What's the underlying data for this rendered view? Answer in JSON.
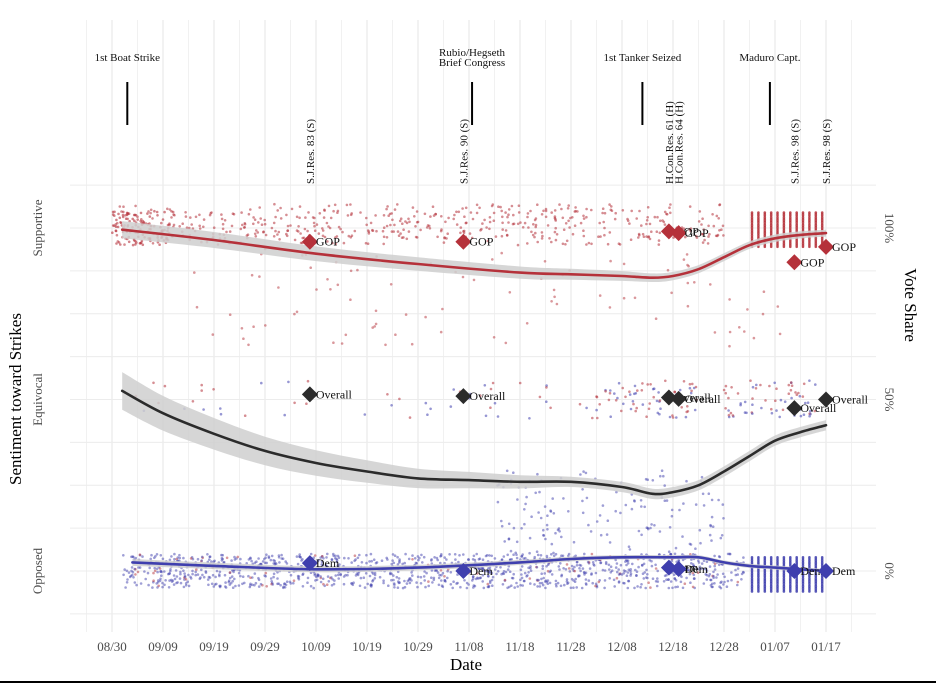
{
  "chart_data": {
    "type": "scatter",
    "title": "",
    "xlabel": "Date",
    "ylabel": "Sentiment toward Strikes",
    "ylabel_right": "Vote Share",
    "x_range_days": [
      -6,
      146
    ],
    "x_origin_label": "08/30",
    "x_ticks": [
      "08/30",
      "09/09",
      "09/19",
      "09/29",
      "10/09",
      "10/19",
      "10/29",
      "11/08",
      "11/18",
      "11/28",
      "12/08",
      "12/18",
      "12/28",
      "01/07",
      "01/17"
    ],
    "x_tick_days": [
      0,
      10,
      20,
      30,
      40,
      50,
      60,
      70,
      80,
      90,
      100,
      110,
      120,
      130,
      140
    ],
    "y_left_ticks": [
      "Opposed",
      "Equivocal",
      "Supportive"
    ],
    "y_left_values": [
      -1,
      0,
      1
    ],
    "y_right_ticks": [
      "0%",
      "50%",
      "100%"
    ],
    "y_right_values": [
      0,
      50,
      100
    ],
    "ylim_left": [
      -1.35,
      1.35
    ],
    "grid": true,
    "colors": {
      "gop": "#b5313a",
      "overall": "#2b2b2b",
      "dem": "#3f3fae",
      "ribbon": "#cfcfcf"
    },
    "events": [
      {
        "label": [
          "1st Boat Strike"
        ],
        "day": 3
      },
      {
        "label": [
          "Rubio/Hegseth",
          "Brief Congress"
        ],
        "day": 70.6
      },
      {
        "label": [
          "1st Tanker Seized"
        ],
        "day": 104
      },
      {
        "label": [
          "Maduro Capt."
        ],
        "day": 129
      }
    ],
    "votes": [
      {
        "name": "S.J.Res. 83 (S)",
        "day": 38.8,
        "gop": 96,
        "overall": 51.5,
        "dem": 2.3
      },
      {
        "name": "S.J.Res. 90 (S)",
        "day": 68.9,
        "gop": 96,
        "overall": 51,
        "dem": 0
      },
      {
        "name": "H.Con.Res. 61 (H)",
        "day": 109.2,
        "gop": 99,
        "overall": 50.6,
        "dem": 1
      },
      {
        "name": "H.Con.Res. 64 (H)",
        "day": 111.1,
        "gop": 98.5,
        "overall": 50.2,
        "dem": 0.6
      },
      {
        "name": "S.J.Res. 98 (S)",
        "day": 133.8,
        "gop": 90,
        "overall": 47.5,
        "dem": 0
      },
      {
        "name": "S.J.Res. 98 (S)",
        "day": 140,
        "gop": 94.5,
        "overall": 50,
        "dem": 0
      }
    ],
    "marker_labels": {
      "gop": "GOP",
      "overall": "Overall",
      "dem": "Dem"
    },
    "series": [
      {
        "name": "GOP trend",
        "color_key": "gop",
        "x": [
          2,
          20,
          40,
          60,
          80,
          90,
          100,
          106,
          110,
          115,
          120,
          125,
          130,
          135,
          140
        ],
        "y": [
          0.99,
          0.93,
          0.85,
          0.79,
          0.74,
          0.73,
          0.72,
          0.71,
          0.72,
          0.76,
          0.83,
          0.9,
          0.94,
          0.96,
          0.97
        ]
      },
      {
        "name": "Overall trend",
        "color_key": "overall",
        "x": [
          2,
          10,
          20,
          30,
          40,
          50,
          60,
          70,
          80,
          90,
          100,
          106,
          110,
          115,
          120,
          125,
          130,
          135,
          140
        ],
        "y": [
          0.05,
          -0.08,
          -0.2,
          -0.3,
          -0.37,
          -0.42,
          -0.46,
          -0.47,
          -0.48,
          -0.48,
          -0.51,
          -0.55,
          -0.54,
          -0.5,
          -0.42,
          -0.33,
          -0.24,
          -0.19,
          -0.15
        ]
      },
      {
        "name": "Dem trend",
        "color_key": "dem",
        "x": [
          4,
          20,
          40,
          60,
          80,
          90,
          100,
          110,
          115,
          120,
          125,
          130,
          135,
          140
        ],
        "y": [
          -0.95,
          -0.97,
          -0.99,
          -0.98,
          -0.95,
          -0.93,
          -0.92,
          -0.92,
          -0.92,
          -0.95,
          -0.97,
          -0.98,
          -0.99,
          -1.0
        ]
      }
    ],
    "ribbon_halfwidth": [
      {
        "series": "GOP trend",
        "start": 0.05,
        "mid": 0.025,
        "end": 0.02
      },
      {
        "series": "Overall trend",
        "start": 0.11,
        "mid": 0.03,
        "end": 0.03
      },
      {
        "series": "Dem trend",
        "start": 0.02,
        "mid": 0.012,
        "end": 0.012
      }
    ],
    "scatter_note": "Jittered individual-statement points (GOP red, Dem blue) clustered at Supportive, Equivocal and Opposed levels; dense columns near 01/03–01/14."
  }
}
